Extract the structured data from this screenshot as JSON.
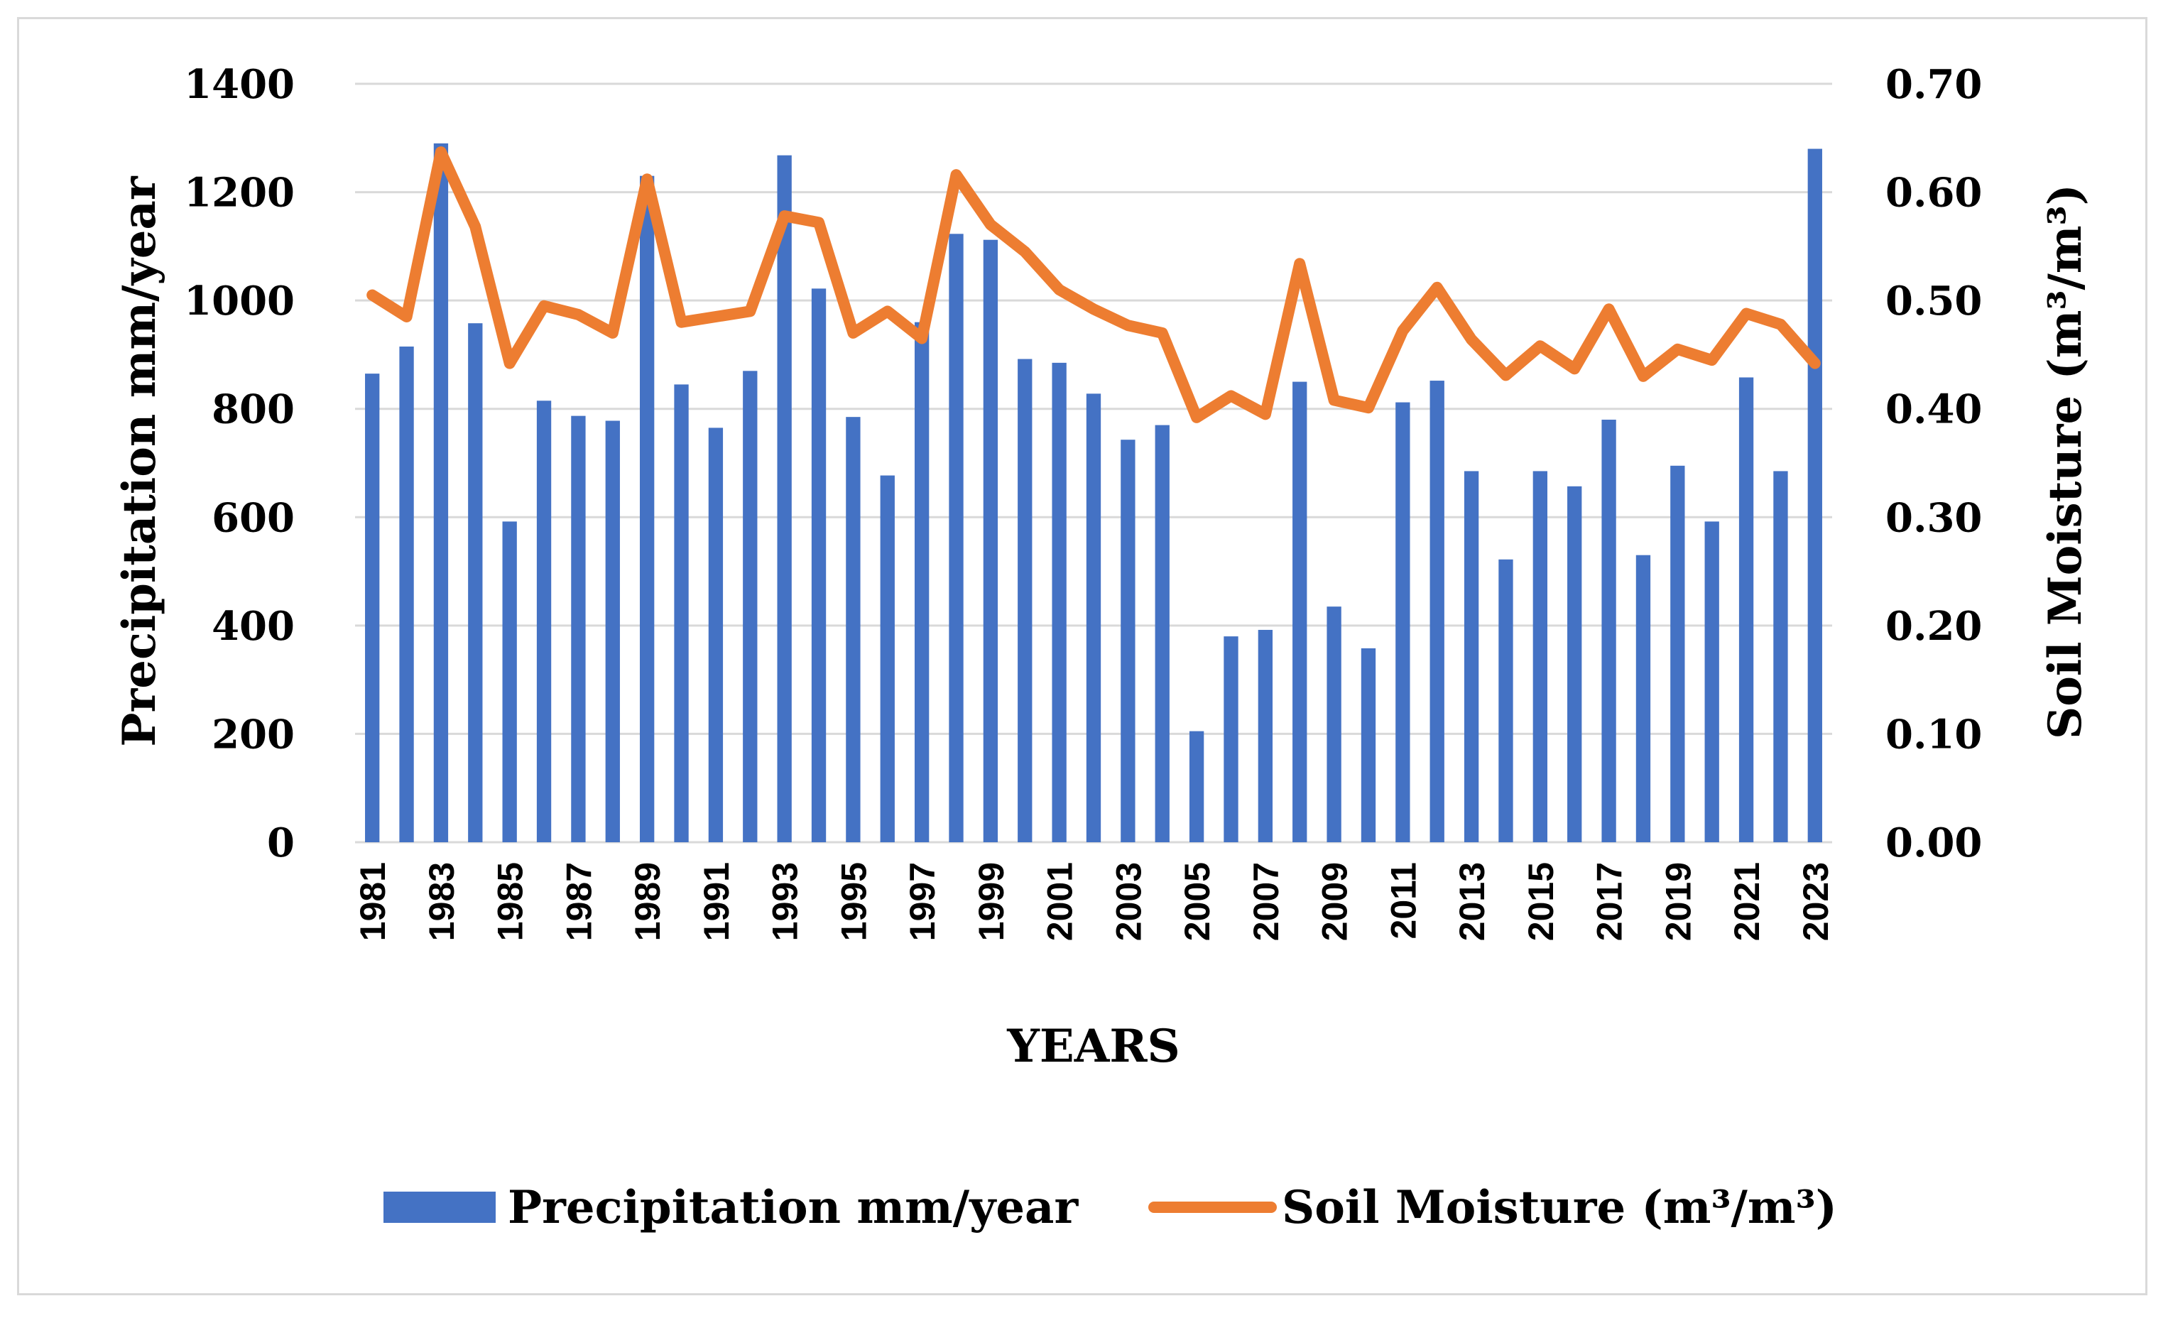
{
  "chart_data": {
    "type": "bar",
    "title": "",
    "xlabel": "YEARS",
    "ylabel": "Precipitation mm/year",
    "y2label": "Soil Moisture (m³/m³)",
    "ylim": [
      0,
      1400
    ],
    "y2lim": [
      0,
      0.7
    ],
    "yticks": [
      "0",
      "200",
      "400",
      "600",
      "800",
      "1000",
      "1200",
      "1400"
    ],
    "y2ticks": [
      "0.00",
      "0.10",
      "0.20",
      "0.30",
      "0.40",
      "0.50",
      "0.60",
      "0.70"
    ],
    "grid": true,
    "legend_position": "bottom",
    "categories": [
      1981,
      1982,
      1983,
      1984,
      1985,
      1986,
      1987,
      1988,
      1989,
      1990,
      1991,
      1992,
      1993,
      1994,
      1995,
      1996,
      1997,
      1998,
      1999,
      2000,
      2001,
      2002,
      2003,
      2004,
      2005,
      2006,
      2007,
      2008,
      2009,
      2010,
      2011,
      2012,
      2013,
      2014,
      2015,
      2016,
      2017,
      2018,
      2019,
      2020,
      2021,
      2022,
      2023
    ],
    "shown_year_labels": [
      "1981",
      "1983",
      "1985",
      "1987",
      "1989",
      "1991",
      "1993",
      "1995",
      "1997",
      "1999",
      "2001",
      "2003",
      "2005",
      "2007",
      "2009",
      "2011",
      "2013",
      "2015",
      "2017",
      "2019",
      "2021",
      "2023"
    ],
    "series": [
      {
        "name": "Precipitation mm/year",
        "type": "bar",
        "axis": "left",
        "color": "#4472c4",
        "values": [
          865,
          915,
          1290,
          958,
          592,
          815,
          787,
          778,
          1230,
          845,
          765,
          870,
          1268,
          1022,
          785,
          677,
          960,
          1123,
          1112,
          892,
          885,
          828,
          743,
          770,
          205,
          380,
          392,
          850,
          435,
          358,
          812,
          852,
          685,
          522,
          685,
          657,
          780,
          530,
          695,
          592,
          858,
          685,
          1280
        ]
      },
      {
        "name": "Soil Moisture (m³/m³)",
        "type": "line",
        "axis": "right",
        "color": "#ed7d31",
        "values": [
          0.505,
          0.485,
          0.637,
          0.568,
          0.442,
          0.495,
          0.487,
          0.47,
          0.612,
          0.48,
          0.485,
          0.49,
          0.578,
          0.572,
          0.47,
          0.49,
          0.465,
          0.616,
          0.57,
          0.545,
          0.51,
          0.492,
          0.477,
          0.47,
          0.392,
          0.412,
          0.395,
          0.534,
          0.408,
          0.401,
          0.472,
          0.512,
          0.464,
          0.431,
          0.458,
          0.437,
          0.492,
          0.43,
          0.455,
          0.445,
          0.488,
          0.478,
          0.442
        ]
      }
    ]
  }
}
